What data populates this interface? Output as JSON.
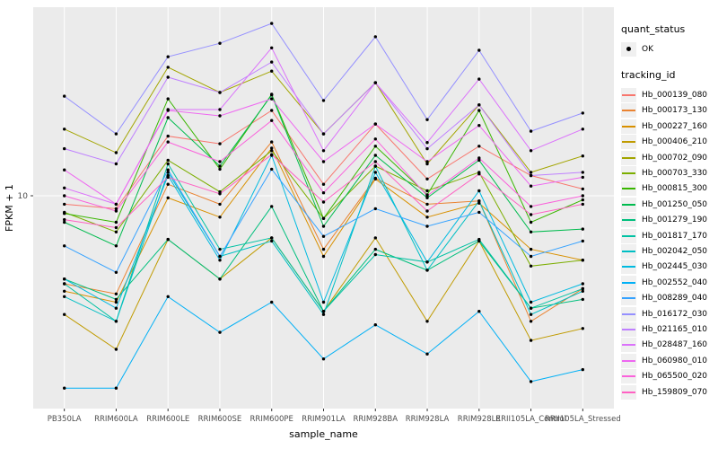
{
  "figure": {
    "background": "#FFFFFF",
    "panel_background": "#EBEBEB",
    "grid_color": "#FFFFFF",
    "point_color": "#000000",
    "axis_text_color": "#4D4D4D",
    "axis_title_color": "#000000",
    "legend_key_fill": "#F0F0F0"
  },
  "axes": {
    "x_title": "sample_name",
    "y_title": "FPKM + 1",
    "y_tick_labels": [
      "10"
    ]
  },
  "legend": {
    "quant_status_title": "quant_status",
    "quant_status_items": [
      {
        "label": "OK",
        "symbol": "point"
      }
    ],
    "tracking_title": "tracking_id"
  },
  "chart_data": {
    "type": "line",
    "title": "",
    "xlabel": "sample_name",
    "ylabel": "FPKM + 1",
    "y_scale": "log10",
    "y_breaks": [
      10
    ],
    "grid": "on",
    "legend_position": "right",
    "x": [
      "PB350LA",
      "RRIM600LA",
      "RRIM600LE",
      "RRIM600SE",
      "RRIM600PE",
      "RRIM901LA",
      "RRIM928BA",
      "RRIM928LA",
      "RRIM928LE",
      "RRII105LA_Control",
      "RRII105LA_Stressed"
    ],
    "quant_status": "OK",
    "series": [
      {
        "name": "Hb_000139_080",
        "color": "#F8766D",
        "values": [
          9.2,
          8.8,
          18.0,
          16.7,
          23.2,
          11.2,
          20.3,
          11.8,
          16.3,
          12.2,
          10.7
        ]
      },
      {
        "name": "Hb_000173_130",
        "color": "#EA8331",
        "values": [
          4.2,
          3.8,
          11.2,
          9.2,
          17.0,
          5.9,
          11.9,
          9.2,
          9.5,
          2.9,
          4.0
        ]
      },
      {
        "name": "Hb_000227_160",
        "color": "#D89000",
        "values": [
          3.9,
          3.5,
          9.8,
          8.1,
          16.0,
          5.5,
          11.8,
          8.1,
          9.3,
          5.9,
          5.3
        ]
      },
      {
        "name": "Hb_000406_210",
        "color": "#C09B00",
        "values": [
          3.1,
          2.2,
          6.5,
          4.4,
          6.6,
          3.2,
          6.6,
          2.9,
          6.4,
          2.4,
          2.7
        ]
      },
      {
        "name": "Hb_000702_090",
        "color": "#A3A500",
        "values": [
          19.3,
          15.3,
          35.5,
          27.7,
          34.2,
          18.4,
          30.5,
          13.7,
          24.5,
          12.6,
          14.8
        ]
      },
      {
        "name": "Hb_000703_330",
        "color": "#7CAE00",
        "values": [
          8.5,
          7.0,
          14.2,
          10.4,
          15.6,
          8.0,
          13.4,
          10.5,
          12.6,
          5.0,
          5.3
        ]
      },
      {
        "name": "Hb_000815_300",
        "color": "#39B600",
        "values": [
          8.4,
          7.7,
          26.0,
          13.0,
          27.2,
          8.0,
          16.3,
          10.1,
          23.2,
          7.7,
          9.6
        ]
      },
      {
        "name": "Hb_001250_050",
        "color": "#00BB4E",
        "values": [
          7.7,
          6.1,
          21.6,
          13.4,
          27.0,
          7.4,
          14.9,
          9.8,
          14.2,
          7.0,
          7.2
        ]
      },
      {
        "name": "Hb_001279_190",
        "color": "#00BF7D",
        "values": [
          4.4,
          3.6,
          6.5,
          4.4,
          9.0,
          3.2,
          5.9,
          4.8,
          6.4,
          3.3,
          3.6
        ]
      },
      {
        "name": "Hb_001817_170",
        "color": "#00C1A3",
        "values": [
          4.2,
          2.9,
          13.7,
          5.9,
          6.6,
          3.2,
          5.6,
          5.2,
          6.5,
          3.3,
          4.0
        ]
      },
      {
        "name": "Hb_002042_050",
        "color": "#00BFC4",
        "values": [
          3.7,
          2.9,
          12.6,
          5.5,
          6.4,
          3.1,
          13.4,
          4.8,
          9.5,
          3.1,
          3.9
        ]
      },
      {
        "name": "Hb_002445_030",
        "color": "#00BAE0",
        "values": [
          4.4,
          3.3,
          12.2,
          5.3,
          14.9,
          3.5,
          12.6,
          5.2,
          10.5,
          3.5,
          4.2
        ]
      },
      {
        "name": "Hb_002552_040",
        "color": "#00B0F6",
        "values": [
          1.5,
          1.5,
          3.7,
          2.6,
          3.5,
          2.0,
          2.8,
          2.1,
          3.2,
          1.6,
          1.8
        ]
      },
      {
        "name": "Hb_008289_040",
        "color": "#35A2FF",
        "values": [
          6.1,
          4.7,
          12.9,
          5.5,
          13.0,
          6.7,
          8.8,
          7.4,
          8.5,
          5.5,
          6.4
        ]
      },
      {
        "name": "Hb_016172_030",
        "color": "#9590FF",
        "values": [
          26.7,
          18.4,
          39.4,
          45.0,
          54.7,
          25.6,
          48.0,
          21.2,
          42.0,
          18.9,
          22.6
        ]
      },
      {
        "name": "Hb_021165_010",
        "color": "#BF80FF",
        "values": [
          15.9,
          13.7,
          32.2,
          27.7,
          37.4,
          18.4,
          30.5,
          15.9,
          24.5,
          12.2,
          12.6
        ]
      },
      {
        "name": "Hb_028487_160",
        "color": "#DB72FB",
        "values": [
          10.8,
          9.2,
          23.4,
          23.4,
          43.0,
          15.6,
          30.5,
          16.9,
          31.6,
          15.6,
          19.3
        ]
      },
      {
        "name": "Hb_060980_010",
        "color": "#EE68F1",
        "values": [
          12.9,
          9.2,
          23.2,
          22.0,
          26.0,
          14.0,
          20.3,
          14.0,
          20.0,
          11.0,
          12.0
        ]
      },
      {
        "name": "Hb_065500_020",
        "color": "#FA62DB",
        "values": [
          10.0,
          8.6,
          17.0,
          14.0,
          21.0,
          10.3,
          17.5,
          10.0,
          14.5,
          9.0,
          10.0
        ]
      },
      {
        "name": "Hb_159809_070",
        "color": "#FF61C3",
        "values": [
          7.9,
          7.3,
          12.0,
          10.2,
          15.0,
          9.4,
          14.0,
          8.6,
          12.4,
          8.3,
          9.2
        ]
      }
    ]
  }
}
